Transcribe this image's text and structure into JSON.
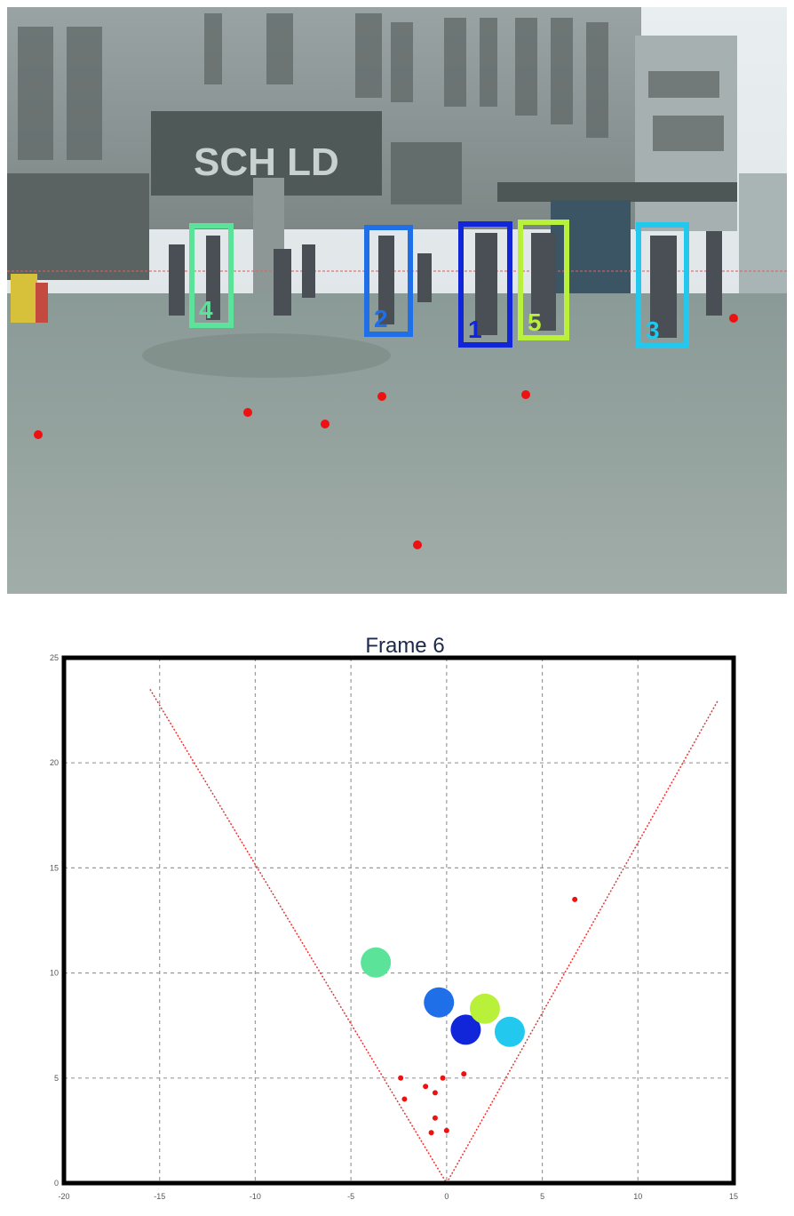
{
  "scene": {
    "sign_text": "SCH  LD",
    "tracks": [
      {
        "id": "4",
        "color": "#5be39a"
      },
      {
        "id": "2",
        "color": "#1e6fe8"
      },
      {
        "id": "1",
        "color": "#1026d8"
      },
      {
        "id": "5",
        "color": "#b8f03a"
      },
      {
        "id": "3",
        "color": "#22c8ee"
      }
    ],
    "dot_color": "#ee1111"
  },
  "chart_data": {
    "type": "scatter",
    "title": "Frame 6",
    "xlim": [
      -20,
      15
    ],
    "ylim": [
      0,
      25
    ],
    "xticks": [
      "-20",
      "-15",
      "-10",
      "-5",
      "0",
      "5",
      "10",
      "15"
    ],
    "yticks": [
      "0",
      "5",
      "10",
      "15",
      "20",
      "25"
    ],
    "grid": true,
    "field_of_view": {
      "left": [
        -15.5,
        23.5
      ],
      "apex": [
        0,
        0
      ],
      "right": [
        14.2,
        23.0
      ],
      "color": "#ee3333"
    },
    "tracks": [
      {
        "id": "4",
        "x": -3.7,
        "y": 10.5,
        "color": "#5be39a"
      },
      {
        "id": "2",
        "x": -0.4,
        "y": 8.6,
        "color": "#1e6fe8"
      },
      {
        "id": "1",
        "x": 1.0,
        "y": 7.3,
        "color": "#1026d8"
      },
      {
        "id": "5",
        "x": 2.0,
        "y": 8.3,
        "color": "#b8f03a"
      },
      {
        "id": "3",
        "x": 3.3,
        "y": 7.2,
        "color": "#22c8ee"
      }
    ],
    "detections": [
      {
        "x": -2.4,
        "y": 5.0
      },
      {
        "x": -2.2,
        "y": 4.0
      },
      {
        "x": -1.1,
        "y": 4.6
      },
      {
        "x": -0.6,
        "y": 4.3
      },
      {
        "x": -0.2,
        "y": 5.0
      },
      {
        "x": 0.9,
        "y": 5.2
      },
      {
        "x": -0.6,
        "y": 3.1
      },
      {
        "x": -0.8,
        "y": 2.4
      },
      {
        "x": 0.0,
        "y": 2.5
      },
      {
        "x": 6.7,
        "y": 13.5
      }
    ],
    "detection_color": "#ee1111"
  }
}
